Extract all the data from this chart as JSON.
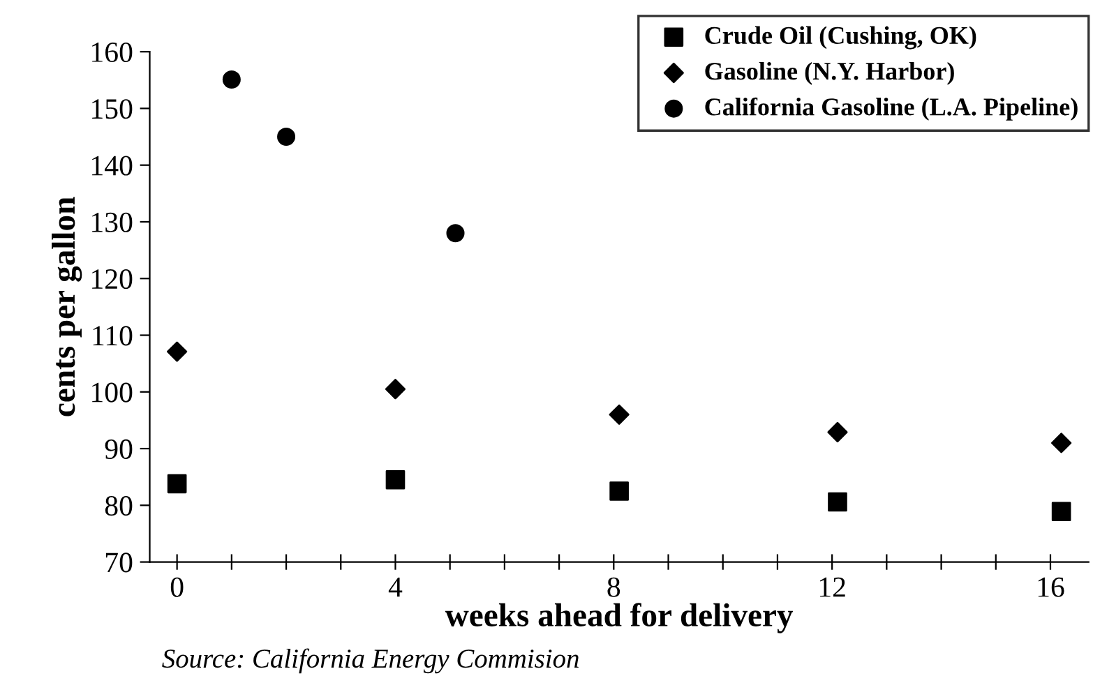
{
  "chart_data": {
    "type": "scatter",
    "xlabel": "weeks ahead for delivery",
    "ylabel": "cents per gallon",
    "annotations": [
      "Source: California Energy Commision"
    ],
    "series": [
      {
        "name": "Crude Oil (Cushing, OK)",
        "color": "#000000",
        "marker": "square",
        "x": [
          0,
          4.0,
          8.1,
          12.1,
          16.2
        ],
        "values": [
          83.8,
          84.5,
          82.5,
          80.6,
          78.9
        ]
      },
      {
        "name": "Gasoline (N.Y. Harbor)",
        "color": "#000000",
        "marker": "diamond",
        "x": [
          0,
          4.0,
          8.1,
          12.1,
          16.2
        ],
        "values": [
          107.1,
          100.5,
          96,
          92.9,
          91
        ]
      },
      {
        "name": "California Gasoline (L.A. Pipeline)",
        "color": "#000000",
        "marker": "circle",
        "x": [
          1.0,
          2.0,
          5.1
        ],
        "values": [
          155.1,
          145,
          128
        ]
      }
    ],
    "xlim": [
      -0.5,
      16.7
    ],
    "ylim": [
      70,
      160
    ],
    "xticks": [
      0,
      {
        "value": 1,
        "label": null
      },
      {
        "value": 2,
        "label": null
      },
      {
        "value": 3,
        "label": null
      },
      4,
      {
        "value": 5,
        "label": null
      },
      {
        "value": 6,
        "label": null
      },
      {
        "value": 7,
        "label": null
      },
      8,
      {
        "value": 9,
        "label": null
      },
      {
        "value": 10,
        "label": null
      },
      {
        "value": 11,
        "label": null
      },
      12,
      {
        "value": 13,
        "label": null
      },
      {
        "value": 14,
        "label": null
      },
      {
        "value": 15,
        "label": null
      },
      16
    ],
    "yticks": [
      70,
      80,
      90,
      100,
      110,
      120,
      130,
      140,
      150,
      160
    ],
    "grid": false,
    "legend": "top right"
  }
}
